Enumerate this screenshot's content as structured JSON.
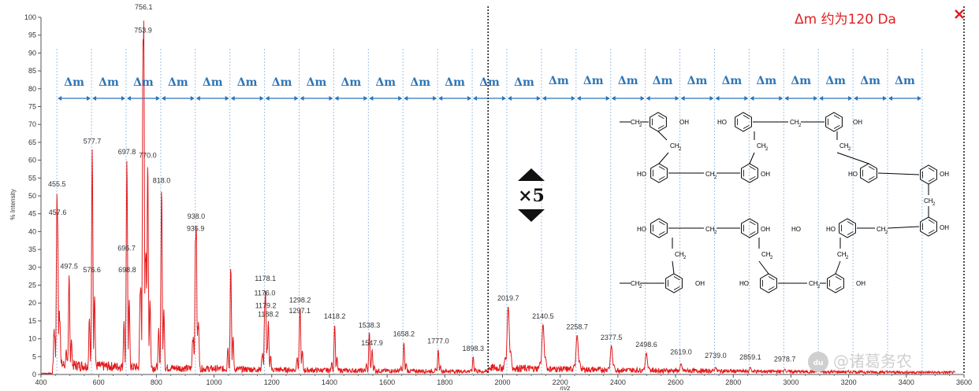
{
  "chart_data": {
    "type": "line",
    "xlabel": "m/z",
    "ylabel": "% Intensity",
    "xlim": [
      400,
      3600
    ],
    "ylim": [
      0,
      100
    ],
    "x_ticks": [
      400,
      600,
      800,
      1000,
      1200,
      1400,
      1600,
      1800,
      2000,
      2200,
      2400,
      2600,
      2800,
      3000,
      3200,
      3400,
      3600
    ],
    "y_ticks": [
      0,
      5,
      10,
      15,
      20,
      25,
      30,
      35,
      40,
      45,
      50,
      55,
      60,
      65,
      70,
      75,
      80,
      85,
      90,
      95,
      100
    ],
    "series_color": "#e31a1c",
    "zoom_boundary_mz": 1950,
    "zoom_factor_label": "×5",
    "annotation_top": "Δm 约为120 Da",
    "delta_label": "Δm",
    "delta_marker_mz": [
      455,
      575,
      695,
      815,
      935,
      1055,
      1175,
      1295,
      1415,
      1535,
      1655,
      1775,
      1895,
      2015,
      2135,
      2255,
      2375,
      2495,
      2615,
      2735,
      2855,
      2975,
      3095,
      3215,
      3335,
      3455
    ],
    "peaks": [
      {
        "mz": 455.5,
        "y": 51,
        "label": "455.5",
        "ly": 52
      },
      {
        "mz": 457.6,
        "y": 43,
        "label": "457.6",
        "ly": 44
      },
      {
        "mz": 497.5,
        "y": 28,
        "label": "497.5",
        "ly": 29
      },
      {
        "mz": 577.7,
        "y": 63,
        "label": "577.7",
        "ly": 64
      },
      {
        "mz": 576.6,
        "y": 27,
        "label": "576.6",
        "ly": 28
      },
      {
        "mz": 697.8,
        "y": 60,
        "label": "697.8",
        "ly": 61
      },
      {
        "mz": 696.7,
        "y": 33,
        "label": "696.7",
        "ly": 34
      },
      {
        "mz": 698.8,
        "y": 27,
        "label": "698.8",
        "ly": 28
      },
      {
        "mz": 756.1,
        "y": 100,
        "label": "756.1",
        "ly": 101.5
      },
      {
        "mz": 753.9,
        "y": 94,
        "label": "753.9",
        "ly": 95
      },
      {
        "mz": 770.0,
        "y": 59,
        "label": "770.0",
        "ly": 60
      },
      {
        "mz": 818.0,
        "y": 52,
        "label": "818.0",
        "ly": 53
      },
      {
        "mz": 938.0,
        "y": 42,
        "label": "938.0",
        "ly": 43
      },
      {
        "mz": 935.9,
        "y": 39,
        "label": "935.9",
        "ly": 39.5
      },
      {
        "mz": 1058.0,
        "y": 30,
        "label": "",
        "ly": 0
      },
      {
        "mz": 1178.1,
        "y": 24,
        "label": "1178.1",
        "ly": 25.5
      },
      {
        "mz": 1176.0,
        "y": 20,
        "label": "1176.0",
        "ly": 21.5
      },
      {
        "mz": 1179.2,
        "y": 17,
        "label": "1179.2",
        "ly": 18
      },
      {
        "mz": 1188.2,
        "y": 15,
        "label": "1188.2",
        "ly": 15.5
      },
      {
        "mz": 1298.2,
        "y": 19,
        "label": "1298.2",
        "ly": 19.5
      },
      {
        "mz": 1297.1,
        "y": 16,
        "label": "1297.1",
        "ly": 16.5
      },
      {
        "mz": 1418.2,
        "y": 14,
        "label": "1418.2",
        "ly": 15
      },
      {
        "mz": 1538.3,
        "y": 12,
        "label": "1538.3",
        "ly": 12.5
      },
      {
        "mz": 1547.9,
        "y": 7,
        "label": "1547.9",
        "ly": 7.5
      },
      {
        "mz": 1658.2,
        "y": 9,
        "label": "1658.2",
        "ly": 10
      },
      {
        "mz": 1777.0,
        "y": 7,
        "label": "1777.0",
        "ly": 8
      },
      {
        "mz": 1898.3,
        "y": 5,
        "label": "1898.3",
        "ly": 6
      },
      {
        "mz": 2019.7,
        "y": 19,
        "label": "2019.7",
        "ly": 20
      },
      {
        "mz": 2140.5,
        "y": 14,
        "label": "2140.5",
        "ly": 15
      },
      {
        "mz": 2258.7,
        "y": 11,
        "label": "2258.7",
        "ly": 12
      },
      {
        "mz": 2377.5,
        "y": 8,
        "label": "2377.5",
        "ly": 9
      },
      {
        "mz": 2498.6,
        "y": 6,
        "label": "2498.6",
        "ly": 7
      },
      {
        "mz": 2619.0,
        "y": 3,
        "label": "2619.0",
        "ly": 5
      },
      {
        "mz": 2739.0,
        "y": 2,
        "label": "2739.0",
        "ly": 4
      },
      {
        "mz": 2859.1,
        "y": 2,
        "label": "2859.1",
        "ly": 3.5
      },
      {
        "mz": 2978.7,
        "y": 1.5,
        "label": "2978.7",
        "ly": 3
      },
      {
        "mz": 3099.0,
        "y": 1,
        "label": "",
        "ly": 0
      },
      {
        "mz": 3219.0,
        "y": 0.8,
        "label": "",
        "ly": 0
      },
      {
        "mz": 3339.0,
        "y": 0.6,
        "label": "",
        "ly": 0
      }
    ]
  },
  "structure": {
    "ch2": "CH",
    "ch2_sub": "2",
    "oh": "OH",
    "ho": "HO"
  },
  "watermark": {
    "badge": "du",
    "text": "@诸葛务农"
  }
}
